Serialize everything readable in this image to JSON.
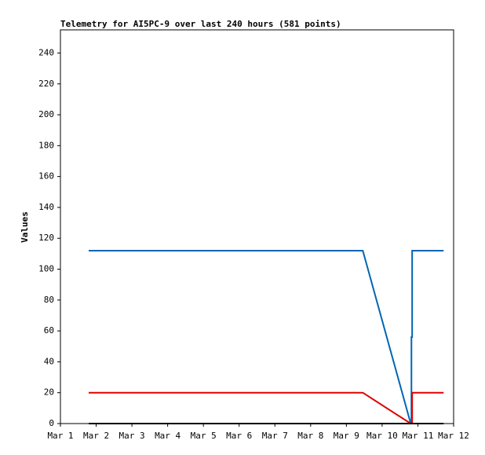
{
  "chart_data": {
    "type": "line",
    "title": "Telemetry for AI5PC-9 over last 240 hours (581 points)",
    "y_label": "Values",
    "xlim": [
      1,
      12
    ],
    "xticks": [
      {
        "value": 1,
        "label": "Mar 1"
      },
      {
        "value": 2,
        "label": "Mar 2"
      },
      {
        "value": 3,
        "label": "Mar 3"
      },
      {
        "value": 4,
        "label": "Mar 4"
      },
      {
        "value": 5,
        "label": "Mar 5"
      },
      {
        "value": 6,
        "label": "Mar 6"
      },
      {
        "value": 7,
        "label": "Mar 7"
      },
      {
        "value": 8,
        "label": "Mar 8"
      },
      {
        "value": 9,
        "label": "Mar 9"
      },
      {
        "value": 10,
        "label": "Mar 10"
      },
      {
        "value": 11,
        "label": "Mar 11"
      },
      {
        "value": 12,
        "label": "Mar 12"
      }
    ],
    "ylim": [
      0,
      255
    ],
    "yticks": [
      0,
      20,
      40,
      60,
      80,
      100,
      120,
      140,
      160,
      180,
      200,
      220,
      240
    ],
    "series": [
      {
        "color": "#0066b3",
        "x": [
          1.79,
          9.46,
          10.8,
          10.82,
          10.82,
          10.84,
          10.84,
          11.72
        ],
        "values": [
          112,
          112,
          0,
          0,
          56,
          56,
          112,
          112
        ]
      },
      {
        "color": "#e00000",
        "x": [
          1.79,
          9.46,
          10.8,
          10.82,
          10.84,
          10.84,
          11.72
        ],
        "values": [
          20,
          20,
          0,
          0,
          0,
          20,
          20
        ]
      },
      {
        "color": "#000000",
        "x": [
          1.79,
          11.72
        ],
        "values": [
          0,
          0
        ]
      }
    ]
  }
}
